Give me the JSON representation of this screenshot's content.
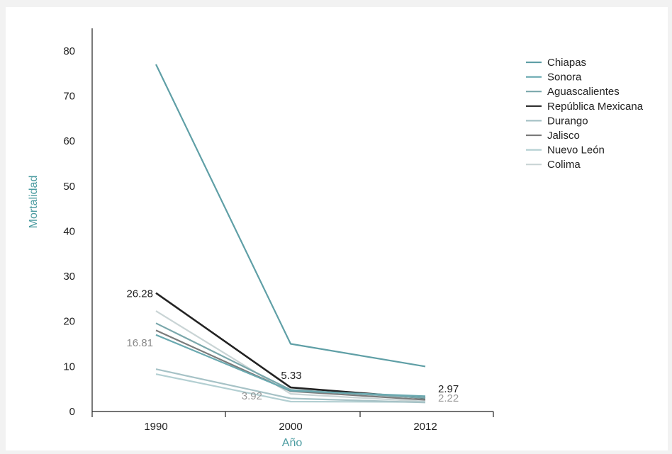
{
  "chart_data": {
    "type": "line",
    "xlabel": "Año",
    "ylabel": "Mortalidad",
    "categories": [
      "1990",
      "2000",
      "2012"
    ],
    "ylim": [
      0,
      85
    ],
    "yticks": [
      0,
      10,
      20,
      30,
      40,
      50,
      60,
      70,
      80
    ],
    "grid": false,
    "legend_position": "top-right",
    "series": [
      {
        "name": "Chiapas",
        "color": "#5f9fa6",
        "values": [
          77,
          15,
          10
        ]
      },
      {
        "name": "Sonora",
        "color": "#6aa9b0",
        "values": [
          17,
          4.6,
          3.4
        ]
      },
      {
        "name": "Aguascalientes",
        "color": "#7aa7ab",
        "values": [
          19.6,
          4.8,
          3.0
        ]
      },
      {
        "name": "República Mexicana",
        "color": "#222222",
        "values": [
          26.28,
          5.33,
          2.97
        ]
      },
      {
        "name": "Durango",
        "color": "#a6c2c6",
        "values": [
          9.4,
          2.9,
          2.0
        ]
      },
      {
        "name": "Jalisco",
        "color": "#7b7b7b",
        "values": [
          18,
          4.5,
          2.6
        ]
      },
      {
        "name": "Nuevo León",
        "color": "#b3cfd2",
        "values": [
          8.3,
          2.2,
          2.1
        ]
      },
      {
        "name": "Colima",
        "color": "#c9d4d5",
        "values": [
          22.3,
          3.92,
          2.22
        ]
      }
    ],
    "annotations": [
      {
        "series": "República Mexicana",
        "point": 0,
        "text": "26.28",
        "color": "#222222"
      },
      {
        "series": "Sonora",
        "point": 0,
        "text": "16.81",
        "color": "#888888"
      },
      {
        "series": "República Mexicana",
        "point": 1,
        "text": "5.33",
        "color": "#222222"
      },
      {
        "series": "Colima",
        "point": 1,
        "text": "3.92",
        "color": "#999999"
      },
      {
        "series": "República Mexicana",
        "point": 2,
        "text": "2.97",
        "color": "#222222"
      },
      {
        "series": "Colima",
        "point": 2,
        "text": "2.22",
        "color": "#999999"
      }
    ]
  }
}
